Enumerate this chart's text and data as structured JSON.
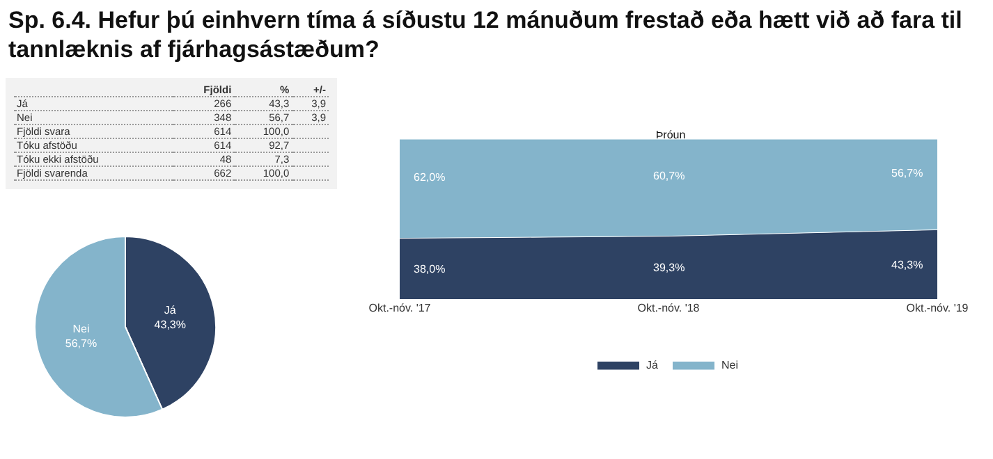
{
  "chart_data": [
    {
      "type": "other",
      "title": "Sp. 6.4. Hefur þú einhvern tíma á síðustu 12 mánuðum frestað eða hætt við að fara til tannlæknis af fjárhagsástæðum?",
      "categories": [
        "Já",
        "Nei",
        "Fjöldi svara",
        "Tóku afstöðu",
        "Tóku ekki afstöðu",
        "Fjöldi svarenda"
      ],
      "series": [
        {
          "name": "Fjöldi",
          "values": [
            266,
            348,
            614,
            614,
            48,
            662
          ],
          "value_labels": [
            "266",
            "348",
            "614",
            "614",
            "48",
            "662"
          ]
        },
        {
          "name": "%",
          "values": [
            43.3,
            56.7,
            100.0,
            92.7,
            7.3,
            100.0
          ],
          "value_labels": [
            "43,3",
            "56,7",
            "100,0",
            "92,7",
            "7,3",
            "100,0"
          ]
        },
        {
          "name": "+/-",
          "values": [
            3.9,
            3.9,
            null,
            null,
            null,
            null
          ],
          "value_labels": [
            "3,9",
            "3,9",
            null,
            null,
            null,
            null
          ]
        }
      ]
    },
    {
      "type": "pie",
      "categories": [
        "Já",
        "Nei"
      ],
      "values": [
        43.3,
        56.7
      ],
      "colors": [
        "#2e4263",
        "#84b4cb"
      ],
      "value_labels": [
        "43,3%",
        "56,7%"
      ]
    },
    {
      "type": "area",
      "title": "Þróun",
      "categories": [
        "Okt.-nóv. '17",
        "Okt.-nóv. '18",
        "Okt.-nóv. '19"
      ],
      "stacked": true,
      "ylim": [
        0,
        100
      ],
      "tick_labels": "x",
      "legend": "bottom",
      "series": [
        {
          "name": "Já",
          "color": "#2e4263",
          "values": [
            38.0,
            39.3,
            43.3
          ],
          "value_labels": [
            "38,0%",
            "39,3%",
            "43,3%"
          ]
        },
        {
          "name": "Nei",
          "color": "#84b4cb",
          "values": [
            62.0,
            60.7,
            56.7
          ],
          "value_labels": [
            "62,0%",
            "60,7%",
            "56,7%"
          ]
        }
      ]
    }
  ]
}
